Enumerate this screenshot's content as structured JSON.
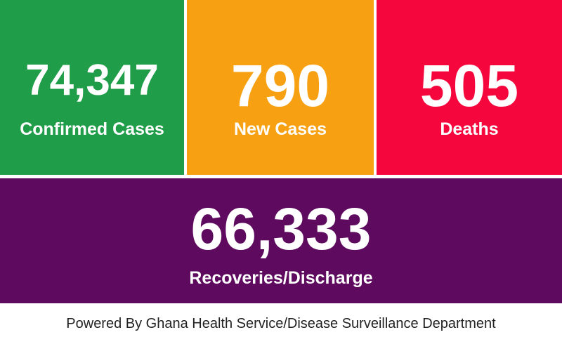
{
  "tiles": [
    {
      "value": "74,347",
      "label": "Confirmed Cases"
    },
    {
      "value": "790",
      "label": "New Cases"
    },
    {
      "value": "505",
      "label": "Deaths"
    },
    {
      "value": "66,333",
      "label": "Recoveries/Discharge"
    }
  ],
  "footer": "Powered By Ghana Health Service/Disease Surveillance Department"
}
